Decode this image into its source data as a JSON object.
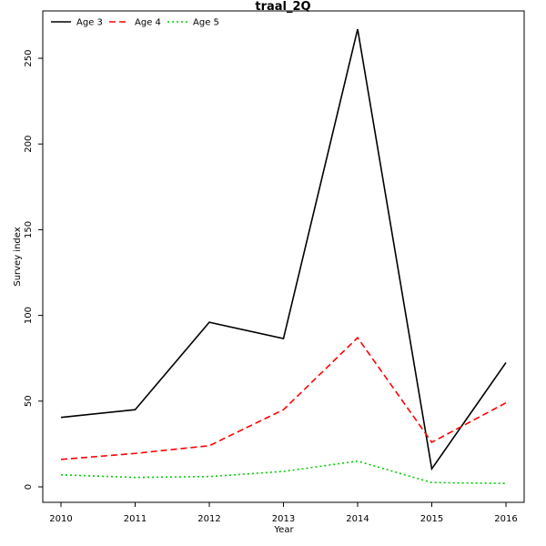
{
  "chart_data": {
    "type": "line",
    "title": "traal_2Q",
    "xlabel": "Year",
    "ylabel": "Survey index",
    "x": [
      2010,
      2011,
      2012,
      2013,
      2014,
      2015,
      2016
    ],
    "xlim": [
      2010,
      2016
    ],
    "ylim": [
      0,
      267
    ],
    "yticks": [
      0,
      50,
      100,
      150,
      200,
      250
    ],
    "grid": false,
    "legend_position": "top-left",
    "series": [
      {
        "name": "Age 3",
        "color": "#000000",
        "dash": "solid",
        "values": [
          40.5,
          45,
          96,
          86.5,
          267,
          10.5,
          72.5
        ]
      },
      {
        "name": "Age 4",
        "color": "#ff0000",
        "dash": "dashed",
        "values": [
          16,
          19.5,
          24,
          45,
          87,
          26,
          49
        ]
      },
      {
        "name": "Age 5",
        "color": "#00cd00",
        "dash": "dotted",
        "values": [
          7,
          5.5,
          6,
          9,
          15,
          2.5,
          2
        ]
      }
    ]
  }
}
